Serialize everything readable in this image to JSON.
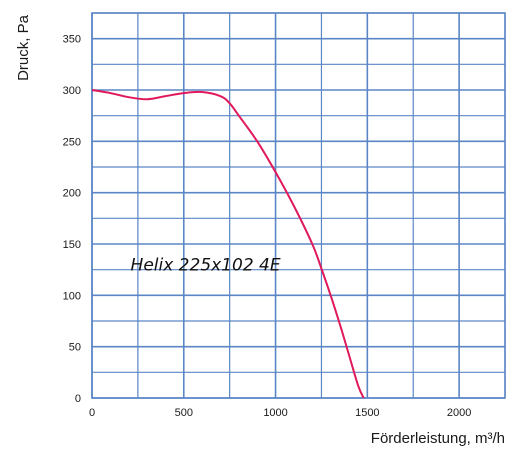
{
  "chart_data": {
    "type": "line",
    "title": "",
    "xlabel": "Förderleistung, m³/h",
    "ylabel": "Druck, Pa",
    "xlim": [
      0,
      2250
    ],
    "ylim": [
      0,
      375
    ],
    "x_ticks": [
      0,
      500,
      1000,
      1500,
      2000
    ],
    "x_tick_labels": [
      "0",
      "500",
      "1000",
      "1500",
      "2000"
    ],
    "y_ticks": [
      0,
      50,
      100,
      150,
      200,
      250,
      300,
      350
    ],
    "y_tick_labels": [
      "0",
      "50",
      "100",
      "150",
      "200",
      "250",
      "300",
      "350"
    ],
    "grid": true,
    "annotations": [
      {
        "text": "Helix 225x102 4E",
        "x": 210,
        "y": 130
      }
    ],
    "series": [
      {
        "name": "",
        "color": "#e0195a",
        "x": [
          0,
          100,
          200,
          300,
          400,
          500,
          600,
          700,
          750,
          800,
          900,
          1000,
          1100,
          1200,
          1250,
          1300,
          1350,
          1400,
          1450,
          1480
        ],
        "y": [
          300,
          297,
          293,
          291,
          294,
          297,
          298,
          294,
          287,
          275,
          250,
          220,
          187,
          150,
          126,
          100,
          72,
          42,
          12,
          0
        ]
      }
    ]
  },
  "colors": {
    "grid": "#5b86c6",
    "text": "#1a1a1a"
  }
}
